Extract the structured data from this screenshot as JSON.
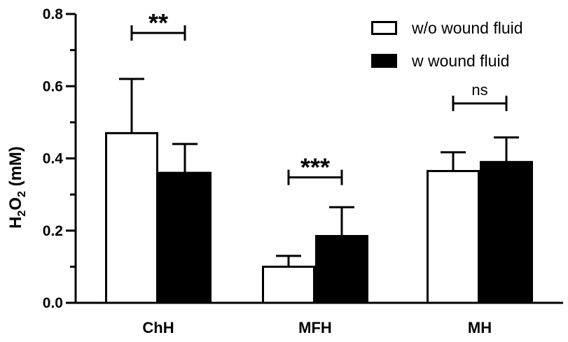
{
  "chart_data": {
    "type": "bar",
    "categories": [
      "ChH",
      "MFH",
      "MH"
    ],
    "series": [
      {
        "name": "w/o wound fluid",
        "values": [
          0.47,
          0.1,
          0.365
        ],
        "errors": [
          0.15,
          0.03,
          0.052
        ],
        "fill": "#ffffff"
      },
      {
        "name": "w wound fluid",
        "values": [
          0.36,
          0.185,
          0.39
        ],
        "errors": [
          0.08,
          0.08,
          0.068
        ],
        "fill": "#000000"
      }
    ],
    "ylabel_prefix": "H",
    "ylabel_sub1": "2",
    "ylabel_mid": "O",
    "ylabel_sub2": "2",
    "ylabel_suffix": " (mM)",
    "ylim": [
      0,
      0.8
    ],
    "yticks": [
      "0.0",
      "0.2",
      "0.4",
      "0.6",
      "0.8"
    ],
    "significance": [
      {
        "category_index": 0,
        "label": "**",
        "top": 0.79
      },
      {
        "category_index": 1,
        "label": "***",
        "top": 0.39
      },
      {
        "category_index": 2,
        "label": "ns",
        "top": 0.595
      }
    ],
    "legend_position": "top-right"
  }
}
